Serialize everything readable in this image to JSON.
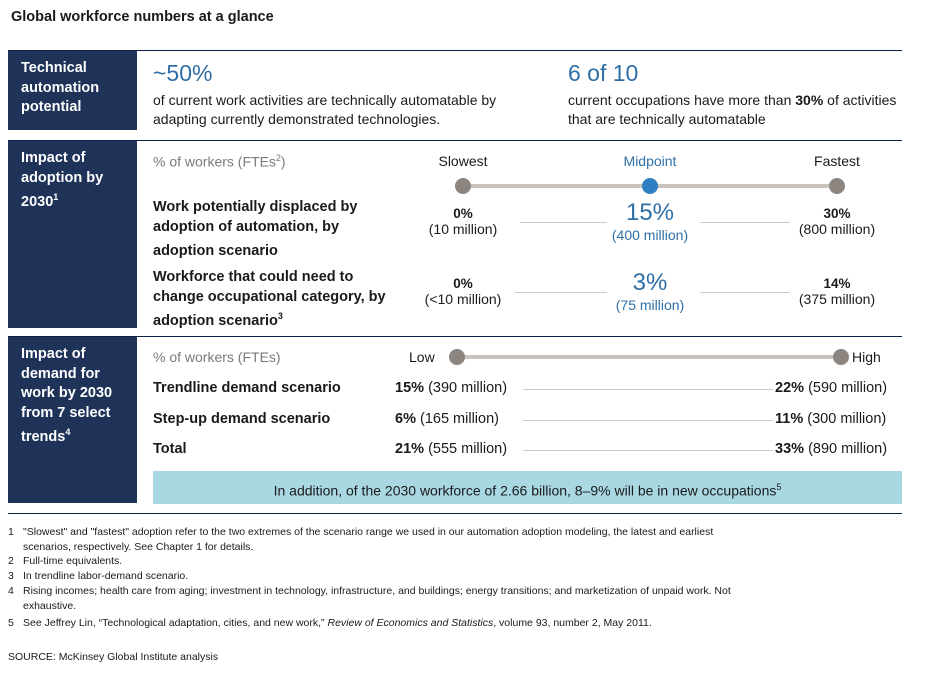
{
  "title": "Global workforce numbers at a glance",
  "section1": {
    "label": "Technical automation potential",
    "stat1": {
      "value": "~50%",
      "text": "of current work activities are technically automatable by adapting currently demonstrated technologies."
    },
    "stat2": {
      "value": "6 of 10",
      "text_pre": "current occupations have more than ",
      "text_bold": "30%",
      "text_post": " of activities that are technically automatable"
    }
  },
  "section2": {
    "label": "Impact of adoption by 2030",
    "label_sup": "1",
    "units_label": "% of workers (FTEs",
    "units_sup": "2",
    "units_close": ")",
    "scenario_headers": {
      "slow": "Slowest",
      "mid": "Midpoint",
      "fast": "Fastest"
    },
    "rows": [
      {
        "label": "Work potentially displaced by adoption of automation, by adoption scenario",
        "label_sup": "",
        "slow_pct": "0%",
        "slow_sub": "(10 million)",
        "mid_pct": "15%",
        "mid_sub": "(400 million)",
        "fast_pct": "30%",
        "fast_sub": "(800 million)"
      },
      {
        "label": "Workforce that could need to change occupational category, by adoption scenario",
        "label_sup": "3",
        "slow_pct": "0%",
        "slow_sub": "(<10 million)",
        "mid_pct": "3%",
        "mid_sub": "(75 million)",
        "fast_pct": "14%",
        "fast_sub": "(375 million)"
      }
    ]
  },
  "section3": {
    "label": "Impact of demand for work by 2030 from 7 select trends",
    "label_sup": "4",
    "units_label": "% of workers (FTEs)",
    "low_label": "Low",
    "high_label": "High",
    "rows": [
      {
        "label": "Trendline demand scenario",
        "low_pct": "15%",
        "low_sub": "(390 million)",
        "high_pct": "22%",
        "high_sub": "(590 million)"
      },
      {
        "label": "Step-up demand scenario",
        "low_pct": "6%",
        "low_sub": "(165 million)",
        "high_pct": "11%",
        "high_sub": "(300 million)"
      },
      {
        "label": "Total",
        "low_pct": "21%",
        "low_sub": "(555 million)",
        "high_pct": "33%",
        "high_sub": "(890 million)"
      }
    ],
    "banner": "In addition, of the 2030 workforce of 2.66 billion, 8–9% will be in new occupations",
    "banner_sup": "5"
  },
  "footnotes": [
    {
      "num": "1",
      "text": "\"Slowest\" and \"fastest\" adoption refer to the two extremes of the scenario range we used in our automation adoption modeling, the latest and earliest",
      "cont": "scenarios, respectively. See Chapter 1 for details."
    },
    {
      "num": "2",
      "text": "Full-time equivalents.",
      "cont": ""
    },
    {
      "num": "3",
      "text": "In trendline labor-demand scenario.",
      "cont": ""
    },
    {
      "num": "4",
      "text": "Rising incomes; health care from aging; investment in technology, infrastructure, and buildings; energy transitions; and marketization of unpaid work. Not",
      "cont": "exhaustive."
    }
  ],
  "footnote5": {
    "num": "5",
    "pre": "See Jeffrey Lin, “Technological adaptation, cities, and new work,” ",
    "italic": "Review of Economics and Statistics",
    "post": ", volume 93, number 2, May 2011."
  },
  "source": "SOURCE: McKinsey Global Institute analysis",
  "colors": {
    "navy": "#1f3359",
    "blue_accent": "#2f6fa6",
    "banner_bg": "#a9d8e3",
    "dot_grey": "#8c8580"
  }
}
